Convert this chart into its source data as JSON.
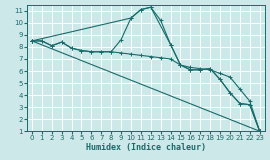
{
  "xlabel": "Humidex (Indice chaleur)",
  "xlim": [
    -0.5,
    23.5
  ],
  "ylim": [
    1,
    11.5
  ],
  "xticks": [
    0,
    1,
    2,
    3,
    4,
    5,
    6,
    7,
    8,
    9,
    10,
    11,
    12,
    13,
    14,
    15,
    16,
    17,
    18,
    19,
    20,
    21,
    22,
    23
  ],
  "yticks": [
    1,
    2,
    3,
    4,
    5,
    6,
    7,
    8,
    9,
    10,
    11
  ],
  "bg_color": "#cde8e8",
  "line_color": "#1a6b6b",
  "grid_color": "#ffffff",
  "lines": [
    {
      "x": [
        0,
        1,
        2,
        3,
        4,
        5,
        6,
        7,
        8,
        9,
        10,
        11,
        12,
        13,
        14,
        15,
        16,
        17,
        18,
        19,
        20,
        21,
        22,
        23
      ],
      "y": [
        8.5,
        8.5,
        8.1,
        8.4,
        7.9,
        7.7,
        7.6,
        7.6,
        7.6,
        8.6,
        10.4,
        11.1,
        11.3,
        10.2,
        8.2,
        6.5,
        6.1,
        6.1,
        6.2,
        5.3,
        4.2,
        3.3,
        3.2,
        1.0
      ]
    },
    {
      "x": [
        0,
        23
      ],
      "y": [
        8.5,
        1.0
      ]
    },
    {
      "x": [
        0,
        10,
        11,
        12,
        14,
        15,
        16,
        17,
        18,
        19,
        20,
        21,
        22,
        23
      ],
      "y": [
        8.5,
        10.4,
        11.1,
        11.3,
        8.2,
        6.5,
        6.1,
        6.1,
        6.2,
        5.3,
        4.2,
        3.3,
        3.2,
        1.0
      ]
    },
    {
      "x": [
        0,
        1,
        2,
        3,
        4,
        5,
        6,
        7,
        8,
        9,
        10,
        11,
        12,
        13,
        14,
        15,
        16,
        17,
        18,
        19,
        20,
        21,
        22,
        23
      ],
      "y": [
        8.5,
        8.5,
        8.1,
        8.4,
        7.9,
        7.7,
        7.6,
        7.6,
        7.6,
        7.5,
        7.4,
        7.3,
        7.2,
        7.1,
        7.0,
        6.5,
        6.3,
        6.2,
        6.1,
        5.8,
        5.5,
        4.5,
        3.5,
        1.0
      ]
    }
  ]
}
